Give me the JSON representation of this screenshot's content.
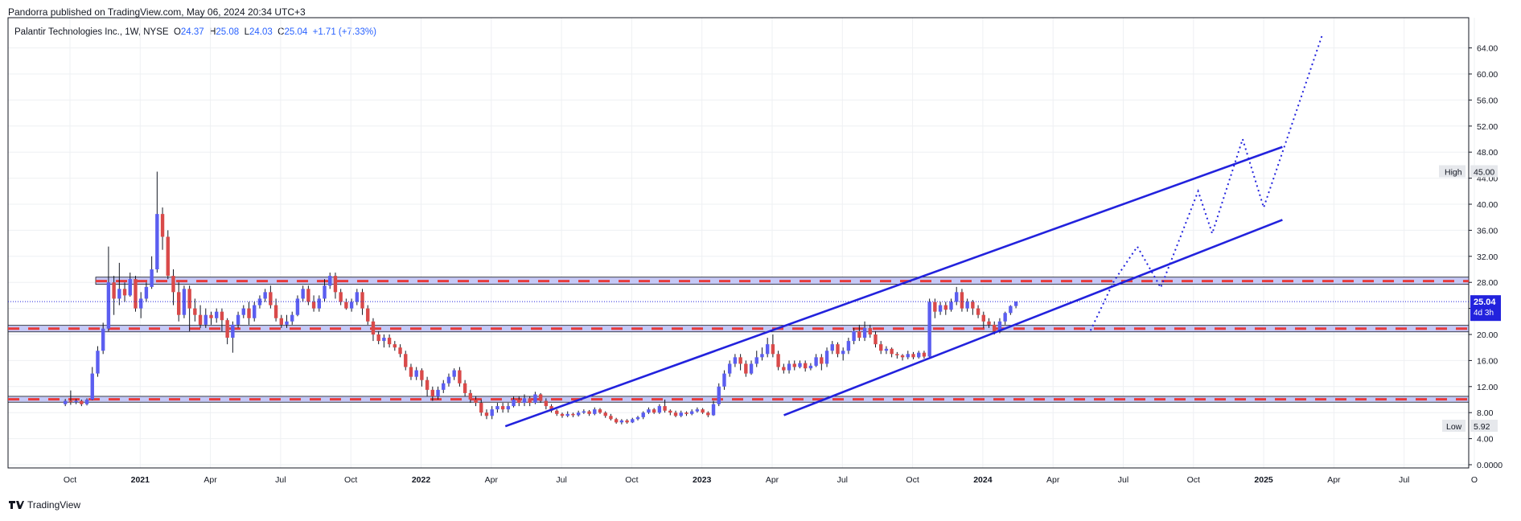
{
  "header": {
    "published": "Pandorra published on TradingView.com, May 06, 2024 20:34 UTC+3"
  },
  "legend": {
    "symbol": "Palantir Technologies Inc., 1W, NYSE",
    "open_label": "O",
    "open": "24.37",
    "high_label": "H",
    "high": "25.08",
    "low_label": "L",
    "low": "24.03",
    "close_label": "C",
    "close": "25.04",
    "change": "+1.71 (+7.33%)"
  },
  "footer": {
    "logo_icon": "tradingview-logo-icon",
    "brand": "TradingView"
  },
  "colors": {
    "up": "#5b5ef0",
    "down": "#d94a4a",
    "line": "#2222dd",
    "zone_fill": "#c5c8f5",
    "zone_dash": "#e83b3b"
  },
  "chart_data": {
    "type": "candlestick",
    "title": "Palantir Technologies Inc., 1W, NYSE",
    "y_axis": {
      "ticks": [
        "64.00",
        "60.00",
        "56.00",
        "52.00",
        "48.00",
        "44.00",
        "40.00",
        "36.00",
        "32.00",
        "28.00",
        "24.00",
        "20.00",
        "16.00",
        "12.00",
        "8.00",
        "4.00",
        "0.0000"
      ],
      "range": [
        0,
        68
      ]
    },
    "x_axis": {
      "labels": [
        "Oct",
        "2021",
        "Apr",
        "Jul",
        "Oct",
        "2022",
        "Apr",
        "Jul",
        "Oct",
        "2023",
        "Apr",
        "Jul",
        "Oct",
        "2024",
        "Apr",
        "Jul",
        "Oct",
        "2025",
        "Apr",
        "Jul",
        "O"
      ],
      "start_month_index": 0
    },
    "price_badge": {
      "value": "25.04",
      "countdown": "4d 3h"
    },
    "high_badge": {
      "label": "High",
      "value": "45.00"
    },
    "low_badge": {
      "label": "Low",
      "value": "5.92"
    },
    "support_resistance_zones": [
      {
        "low": 27.7,
        "high": 28.8,
        "level": 28.2
      },
      {
        "low": 20.4,
        "high": 21.4,
        "level": 20.9
      },
      {
        "low": 9.6,
        "high": 10.5,
        "level": 10.05
      }
    ],
    "trend_lines": [
      {
        "from": {
          "month": 18.6,
          "price": 5.9
        },
        "to": {
          "month": 51.8,
          "price": 48.8
        }
      },
      {
        "from": {
          "month": 30.5,
          "price": 7.6
        },
        "to": {
          "month": 51.8,
          "price": 37.6
        }
      }
    ],
    "projection": [
      [
        43.6,
        20.6
      ],
      [
        44.6,
        28.2
      ],
      [
        45.6,
        33.5
      ],
      [
        46.6,
        27.2
      ],
      [
        48.2,
        42.0
      ],
      [
        48.8,
        35.5
      ],
      [
        50.1,
        50.0
      ],
      [
        51.0,
        39.5
      ],
      [
        53.5,
        66.0
      ]
    ],
    "candles": [
      [
        9.3,
        9.8,
        9.0,
        10.1
      ],
      [
        9.8,
        9.6,
        9.2,
        11.4
      ],
      [
        9.6,
        9.8,
        9.3,
        10.1
      ],
      [
        9.8,
        9.3,
        9.0,
        10.0
      ],
      [
        9.3,
        10.0,
        9.1,
        10.2
      ],
      [
        10.0,
        14.0,
        9.9,
        15.0
      ],
      [
        14.0,
        17.5,
        13.5,
        18.2
      ],
      [
        17.5,
        20.9,
        17.0,
        21.8
      ],
      [
        20.9,
        28.0,
        20.5,
        33.5
      ],
      [
        28.0,
        25.5,
        23.0,
        29.0
      ],
      [
        25.5,
        27.0,
        24.5,
        31.0
      ],
      [
        27.0,
        26.0,
        25.0,
        28.0
      ],
      [
        26.0,
        28.5,
        25.8,
        29.5
      ],
      [
        28.5,
        24.0,
        23.5,
        29.0
      ],
      [
        24.0,
        25.5,
        22.5,
        26.5
      ],
      [
        25.5,
        27.3,
        25.0,
        28.0
      ],
      [
        27.3,
        30.0,
        27.0,
        32.0
      ],
      [
        30.0,
        38.5,
        29.5,
        45.0
      ],
      [
        38.5,
        35.0,
        33.0,
        39.5
      ],
      [
        35.0,
        29.0,
        28.5,
        36.0
      ],
      [
        29.0,
        26.5,
        24.5,
        30.0
      ],
      [
        26.5,
        23.0,
        22.0,
        28.0
      ],
      [
        23.0,
        27.0,
        22.5,
        27.5
      ],
      [
        27.0,
        24.0,
        20.5,
        27.5
      ],
      [
        24.0,
        23.0,
        22.0,
        25.5
      ],
      [
        23.0,
        21.5,
        21.0,
        24.5
      ],
      [
        21.5,
        23.0,
        21.0,
        24.0
      ],
      [
        23.0,
        22.5,
        21.5,
        23.5
      ],
      [
        22.5,
        23.5,
        21.8,
        24.0
      ],
      [
        23.5,
        22.2,
        20.5,
        24.0
      ],
      [
        22.2,
        19.5,
        18.5,
        22.5
      ],
      [
        19.5,
        21.5,
        17.2,
        22.0
      ],
      [
        21.5,
        23.0,
        21.0,
        23.5
      ],
      [
        23.0,
        24.0,
        22.5,
        24.5
      ],
      [
        24.0,
        22.5,
        21.5,
        25.0
      ],
      [
        22.5,
        24.5,
        22.0,
        25.0
      ],
      [
        24.5,
        25.5,
        24.0,
        26.0
      ],
      [
        25.5,
        26.5,
        25.0,
        27.0
      ],
      [
        26.5,
        24.5,
        24.0,
        27.5
      ],
      [
        24.5,
        22.5,
        22.0,
        25.5
      ],
      [
        22.5,
        21.5,
        21.0,
        23.0
      ],
      [
        21.5,
        22.0,
        21.0,
        23.0
      ],
      [
        22.0,
        23.0,
        21.5,
        23.5
      ],
      [
        23.0,
        25.5,
        22.8,
        26.0
      ],
      [
        25.5,
        27.0,
        25.0,
        27.5
      ],
      [
        27.0,
        25.0,
        24.5,
        27.5
      ],
      [
        25.0,
        24.0,
        23.5,
        26.0
      ],
      [
        24.0,
        25.5,
        23.5,
        26.0
      ],
      [
        25.5,
        27.5,
        25.0,
        28.5
      ],
      [
        27.5,
        29.0,
        27.0,
        29.5
      ],
      [
        29.0,
        26.5,
        25.5,
        29.5
      ],
      [
        26.5,
        25.0,
        24.5,
        27.0
      ],
      [
        25.0,
        24.0,
        23.8,
        25.5
      ],
      [
        24.0,
        25.0,
        23.5,
        25.5
      ],
      [
        25.0,
        26.5,
        24.5,
        27.0
      ],
      [
        26.5,
        24.0,
        23.0,
        27.0
      ],
      [
        24.0,
        22.0,
        21.5,
        24.5
      ],
      [
        22.0,
        20.0,
        19.0,
        22.5
      ],
      [
        20.0,
        19.0,
        18.5,
        20.5
      ],
      [
        19.0,
        19.5,
        18.0,
        20.0
      ],
      [
        19.5,
        18.5,
        18.0,
        20.0
      ],
      [
        18.5,
        18.0,
        17.5,
        19.0
      ],
      [
        18.0,
        17.0,
        16.5,
        18.5
      ],
      [
        17.0,
        15.0,
        14.5,
        17.5
      ],
      [
        15.0,
        13.5,
        13.0,
        15.5
      ],
      [
        13.5,
        14.5,
        13.0,
        15.0
      ],
      [
        14.5,
        13.0,
        12.0,
        14.8
      ],
      [
        13.0,
        11.5,
        10.5,
        13.5
      ],
      [
        11.5,
        10.5,
        9.8,
        12.0
      ],
      [
        10.5,
        11.5,
        10.0,
        12.0
      ],
      [
        11.5,
        12.5,
        11.0,
        13.0
      ],
      [
        12.5,
        13.5,
        12.0,
        14.0
      ],
      [
        13.5,
        14.5,
        13.0,
        14.8
      ],
      [
        14.5,
        12.5,
        12.0,
        15.0
      ],
      [
        12.5,
        11.0,
        10.5,
        13.0
      ],
      [
        11.0,
        10.0,
        9.5,
        11.5
      ],
      [
        10.0,
        9.5,
        9.0,
        10.5
      ],
      [
        9.5,
        8.0,
        7.5,
        10.0
      ],
      [
        8.0,
        7.5,
        7.0,
        8.5
      ],
      [
        7.5,
        8.5,
        7.0,
        9.0
      ],
      [
        8.5,
        9.0,
        8.0,
        9.5
      ],
      [
        9.0,
        8.5,
        8.0,
        9.5
      ],
      [
        8.5,
        9.0,
        8.0,
        9.5
      ],
      [
        9.0,
        10.0,
        8.8,
        10.5
      ],
      [
        10.0,
        9.5,
        9.0,
        10.5
      ],
      [
        9.5,
        10.2,
        9.0,
        10.8
      ],
      [
        10.2,
        9.5,
        9.0,
        10.5
      ],
      [
        9.5,
        10.8,
        9.3,
        11.2
      ],
      [
        10.8,
        9.8,
        9.5,
        11.0
      ],
      [
        9.8,
        9.0,
        8.5,
        10.2
      ],
      [
        9.0,
        8.3,
        8.0,
        9.3
      ],
      [
        8.3,
        7.8,
        7.5,
        8.5
      ],
      [
        7.8,
        7.5,
        7.2,
        8.0
      ],
      [
        7.5,
        7.8,
        7.3,
        8.2
      ],
      [
        7.8,
        7.6,
        7.3,
        8.0
      ],
      [
        7.6,
        8.0,
        7.4,
        8.3
      ],
      [
        8.0,
        8.2,
        7.8,
        8.5
      ],
      [
        8.2,
        7.8,
        7.5,
        8.4
      ],
      [
        7.8,
        8.5,
        7.6,
        8.8
      ],
      [
        8.5,
        8.0,
        7.8,
        8.7
      ],
      [
        8.0,
        7.5,
        7.2,
        8.2
      ],
      [
        7.5,
        7.0,
        6.8,
        7.8
      ],
      [
        7.0,
        6.5,
        6.3,
        7.2
      ],
      [
        6.5,
        6.8,
        6.2,
        7.0
      ],
      [
        6.8,
        6.5,
        6.3,
        7.0
      ],
      [
        6.5,
        7.0,
        6.4,
        7.2
      ],
      [
        7.0,
        7.3,
        6.8,
        7.5
      ],
      [
        7.3,
        8.0,
        7.0,
        8.2
      ],
      [
        8.0,
        8.5,
        7.8,
        8.8
      ],
      [
        8.5,
        8.0,
        7.8,
        8.7
      ],
      [
        8.0,
        9.0,
        7.8,
        9.3
      ],
      [
        9.0,
        8.3,
        8.0,
        10.0
      ],
      [
        8.3,
        8.0,
        7.6,
        8.5
      ],
      [
        8.0,
        7.5,
        7.3,
        8.3
      ],
      [
        7.5,
        8.0,
        7.3,
        8.3
      ],
      [
        8.0,
        7.8,
        7.5,
        8.2
      ],
      [
        7.8,
        8.2,
        7.6,
        8.5
      ],
      [
        8.2,
        8.5,
        8.0,
        8.8
      ],
      [
        8.5,
        8.0,
        7.8,
        8.7
      ],
      [
        8.0,
        7.6,
        7.3,
        8.2
      ],
      [
        7.6,
        9.3,
        7.5,
        9.8
      ],
      [
        9.3,
        12.0,
        9.0,
        12.5
      ],
      [
        12.0,
        14.0,
        11.5,
        14.5
      ],
      [
        14.0,
        15.5,
        13.5,
        16.0
      ],
      [
        15.5,
        16.5,
        15.0,
        17.0
      ],
      [
        16.5,
        15.5,
        14.5,
        17.0
      ],
      [
        15.5,
        14.0,
        13.5,
        16.0
      ],
      [
        14.0,
        15.5,
        13.8,
        16.0
      ],
      [
        15.5,
        16.5,
        15.0,
        17.5
      ],
      [
        16.5,
        17.0,
        16.0,
        18.0
      ],
      [
        17.0,
        18.5,
        16.5,
        19.5
      ],
      [
        18.5,
        17.0,
        16.5,
        20.0
      ],
      [
        17.0,
        15.0,
        14.5,
        17.5
      ],
      [
        15.0,
        14.5,
        14.0,
        15.5
      ],
      [
        14.5,
        15.5,
        14.0,
        16.0
      ],
      [
        15.5,
        15.0,
        14.5,
        16.0
      ],
      [
        15.0,
        15.6,
        14.8,
        16.0
      ],
      [
        15.6,
        14.8,
        14.3,
        16.0
      ],
      [
        14.8,
        15.2,
        14.5,
        15.6
      ],
      [
        15.2,
        16.5,
        15.0,
        17.0
      ],
      [
        16.5,
        15.5,
        14.5,
        17.0
      ],
      [
        15.5,
        17.5,
        15.0,
        18.0
      ],
      [
        17.5,
        18.5,
        17.0,
        19.0
      ],
      [
        18.5,
        17.0,
        16.5,
        18.8
      ],
      [
        17.0,
        17.5,
        16.0,
        18.0
      ],
      [
        17.5,
        19.0,
        17.0,
        19.5
      ],
      [
        19.0,
        20.5,
        18.5,
        21.0
      ],
      [
        20.5,
        19.5,
        19.0,
        21.5
      ],
      [
        19.5,
        21.0,
        19.0,
        22.0
      ],
      [
        21.0,
        20.0,
        19.5,
        21.5
      ],
      [
        20.0,
        18.5,
        18.0,
        20.5
      ],
      [
        18.5,
        17.5,
        17.0,
        19.0
      ],
      [
        17.5,
        17.8,
        17.0,
        18.2
      ],
      [
        17.8,
        17.0,
        16.5,
        18.0
      ],
      [
        17.0,
        16.8,
        16.3,
        17.3
      ],
      [
        16.8,
        16.5,
        16.0,
        17.0
      ],
      [
        16.5,
        17.0,
        16.2,
        17.5
      ],
      [
        17.0,
        16.5,
        16.2,
        17.3
      ],
      [
        16.5,
        17.2,
        16.3,
        17.5
      ],
      [
        17.2,
        16.6,
        16.3,
        17.5
      ],
      [
        16.6,
        25.0,
        16.5,
        25.5
      ],
      [
        25.0,
        23.5,
        22.5,
        25.5
      ],
      [
        23.5,
        24.5,
        23.0,
        25.0
      ],
      [
        24.5,
        23.8,
        23.0,
        25.0
      ],
      [
        23.8,
        25.0,
        23.5,
        25.5
      ],
      [
        25.0,
        26.5,
        24.5,
        27.3
      ],
      [
        26.5,
        24.0,
        23.5,
        27.0
      ],
      [
        24.0,
        25.0,
        23.5,
        25.5
      ],
      [
        25.0,
        24.0,
        23.0,
        25.3
      ],
      [
        24.0,
        23.0,
        22.5,
        24.5
      ],
      [
        23.0,
        22.0,
        21.0,
        23.5
      ],
      [
        22.0,
        21.5,
        21.0,
        22.5
      ],
      [
        21.5,
        20.5,
        20.0,
        22.0
      ],
      [
        20.5,
        22.0,
        20.2,
        22.5
      ],
      [
        22.0,
        23.3,
        21.5,
        23.5
      ],
      [
        23.3,
        24.37,
        23.0,
        24.5
      ],
      [
        24.37,
        25.04,
        24.03,
        25.08
      ]
    ]
  }
}
